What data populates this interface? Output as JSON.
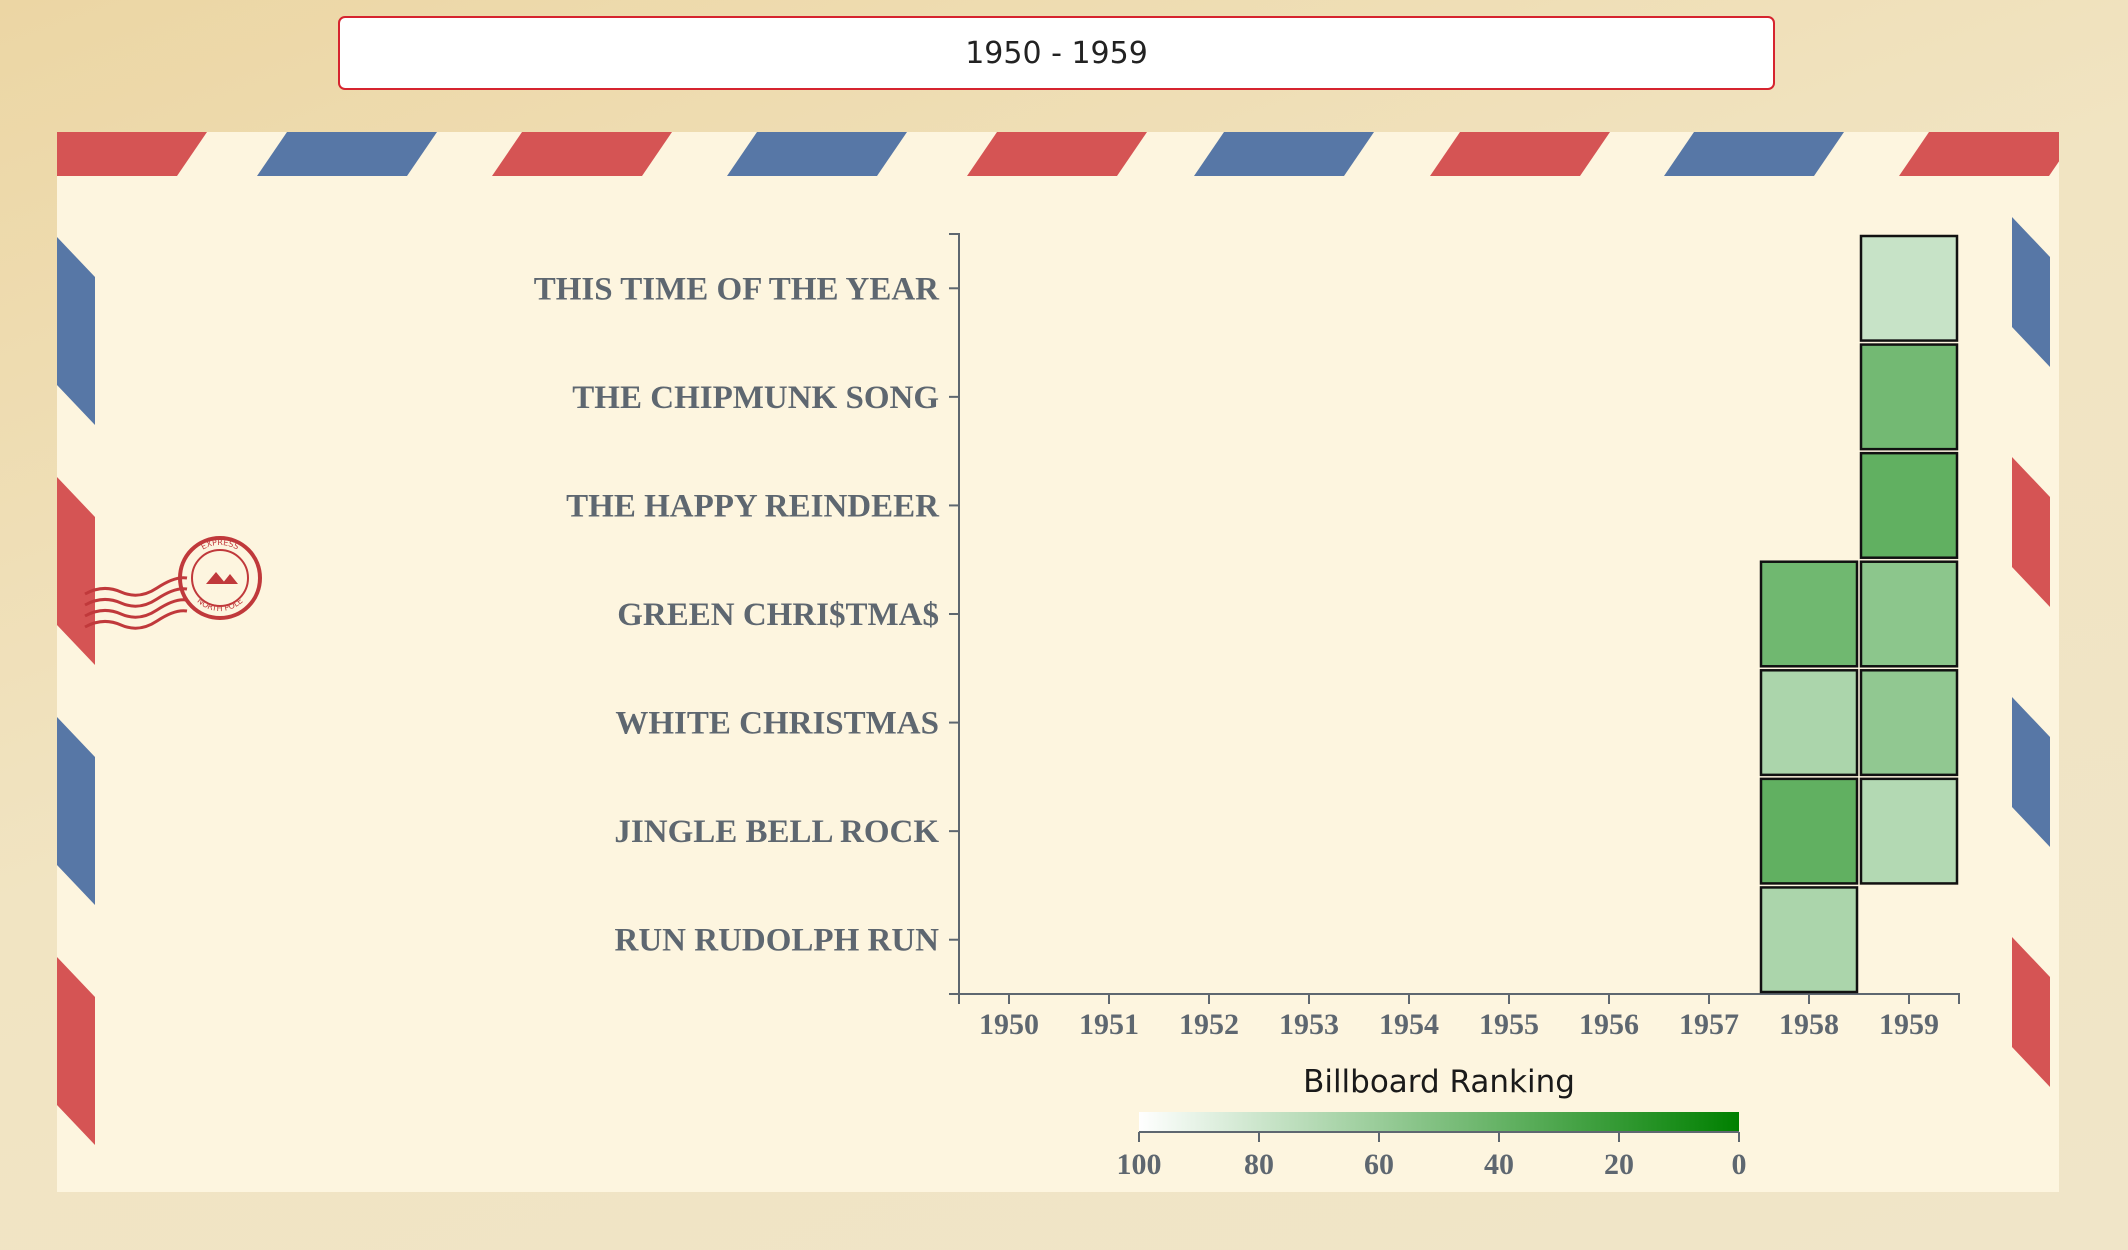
{
  "selector": {
    "label": "1950 - 1959"
  },
  "colors": {
    "selector_border": "#d6242f",
    "envelope_bg": "#fdf5df",
    "stripe_red": "#d55454",
    "stripe_blue": "#5777a6",
    "stamp": "#c0393b",
    "axis": "#5e6770",
    "cell_stroke": "#111111",
    "scale_low": "#ffffff",
    "scale_high": "#008000"
  },
  "stamp": {
    "ring_text_top": "EXPRESS",
    "ring_text_bottom": "NORTH POLE"
  },
  "chart_data": {
    "type": "heatmap",
    "title": "",
    "xlabel": "",
    "ylabel": "",
    "x": [
      "1950",
      "1951",
      "1952",
      "1953",
      "1954",
      "1955",
      "1956",
      "1957",
      "1958",
      "1959"
    ],
    "y": [
      "THIS TIME OF THE YEAR",
      "THE CHIPMUNK SONG",
      "THE HAPPY REINDEER",
      "GREEN CHRI$TMA$",
      "WHITE CHRISTMAS",
      "JINGLE BELL ROCK",
      "RUN RUDOLPH RUN"
    ],
    "cells": [
      {
        "song": "THIS TIME OF THE YEAR",
        "year": "1959",
        "rank": 78
      },
      {
        "song": "THE CHIPMUNK SONG",
        "year": "1959",
        "rank": 45
      },
      {
        "song": "THE HAPPY REINDEER",
        "year": "1959",
        "rank": 38
      },
      {
        "song": "GREEN CHRI$TMA$",
        "year": "1958",
        "rank": 44
      },
      {
        "song": "GREEN CHRI$TMA$",
        "year": "1959",
        "rank": 55
      },
      {
        "song": "WHITE CHRISTMAS",
        "year": "1958",
        "rank": 67
      },
      {
        "song": "WHITE CHRISTMAS",
        "year": "1959",
        "rank": 57
      },
      {
        "song": "JINGLE BELL ROCK",
        "year": "1958",
        "rank": 38
      },
      {
        "song": "JINGLE BELL ROCK",
        "year": "1959",
        "rank": 70
      },
      {
        "song": "RUN RUDOLPH RUN",
        "year": "1958",
        "rank": 67
      }
    ],
    "legend": {
      "title": "Billboard Ranking",
      "placement": "bottom",
      "domain": [
        100,
        0
      ],
      "ticks": [
        "100",
        "80",
        "60",
        "40",
        "20",
        "0"
      ]
    }
  }
}
